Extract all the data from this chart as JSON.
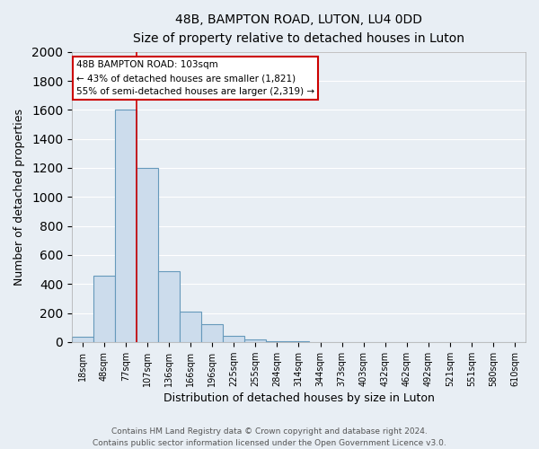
{
  "title_line1": "48B, BAMPTON ROAD, LUTON, LU4 0DD",
  "title_line2": "Size of property relative to detached houses in Luton",
  "xlabel": "Distribution of detached houses by size in Luton",
  "ylabel": "Number of detached properties",
  "bar_labels": [
    "18sqm",
    "48sqm",
    "77sqm",
    "107sqm",
    "136sqm",
    "166sqm",
    "196sqm",
    "225sqm",
    "255sqm",
    "284sqm",
    "314sqm",
    "344sqm",
    "373sqm",
    "403sqm",
    "432sqm",
    "462sqm",
    "492sqm",
    "521sqm",
    "551sqm",
    "580sqm",
    "610sqm"
  ],
  "bar_values": [
    35,
    460,
    1600,
    1200,
    490,
    210,
    120,
    45,
    20,
    8,
    3,
    0,
    0,
    0,
    0,
    0,
    0,
    0,
    0,
    0,
    0
  ],
  "bar_color": "#ccdcec",
  "bar_edge_color": "#6699bb",
  "ylim": [
    0,
    2000
  ],
  "yticks": [
    0,
    200,
    400,
    600,
    800,
    1000,
    1200,
    1400,
    1600,
    1800,
    2000
  ],
  "property_line_color": "#cc0000",
  "annotation_title": "48B BAMPTON ROAD: 103sqm",
  "annotation_line1": "← 43% of detached houses are smaller (1,821)",
  "annotation_line2": "55% of semi-detached houses are larger (2,319) →",
  "annotation_box_color": "#ffffff",
  "annotation_box_edge": "#cc0000",
  "footer_line1": "Contains HM Land Registry data © Crown copyright and database right 2024.",
  "footer_line2": "Contains public sector information licensed under the Open Government Licence v3.0.",
  "background_color": "#e8eef4",
  "plot_bg_color": "#e8eef4",
  "grid_color": "#ffffff"
}
